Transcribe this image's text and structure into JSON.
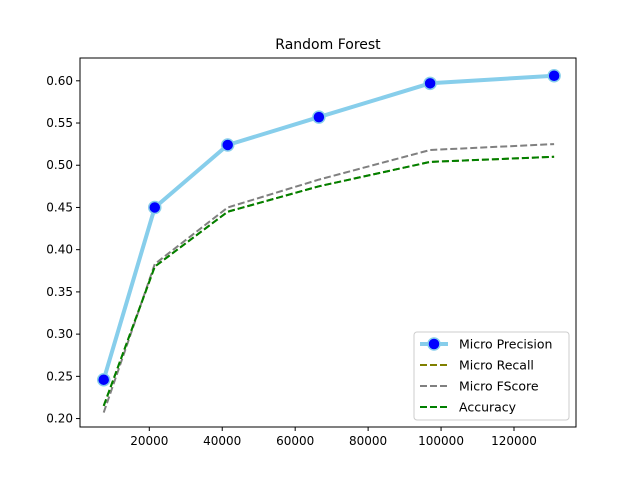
{
  "chart_data": {
    "type": "line",
    "title": "Random Forest",
    "xlabel": "",
    "ylabel": "",
    "xlim": [
      1000,
      137000
    ],
    "ylim": [
      0.19,
      0.627
    ],
    "xticks": [
      20000,
      40000,
      60000,
      80000,
      100000,
      120000
    ],
    "yticks": [
      0.2,
      0.25,
      0.3,
      0.35,
      0.4,
      0.45,
      0.5,
      0.55,
      0.6
    ],
    "x": [
      7500,
      21500,
      41500,
      66500,
      97000,
      131000
    ],
    "series": [
      {
        "name": "Micro Precision",
        "values": [
          0.246,
          0.45,
          0.524,
          0.557,
          0.597,
          0.606
        ],
        "color": "#87ceeb",
        "marker_color": "#0000ff",
        "style": "solid-marker"
      },
      {
        "name": "Micro Recall",
        "values": [
          0.215,
          0.38,
          0.445,
          0.475,
          0.504,
          0.51
        ],
        "color": "#808000",
        "style": "dashed"
      },
      {
        "name": "Micro FScore",
        "values": [
          0.207,
          0.383,
          0.45,
          0.483,
          0.518,
          0.525
        ],
        "color": "#808080",
        "style": "dashed"
      },
      {
        "name": "Accuracy",
        "values": [
          0.215,
          0.38,
          0.445,
          0.475,
          0.504,
          0.51
        ],
        "color": "#008000",
        "style": "dashed"
      }
    ],
    "legend": "lower-right",
    "grid": false
  }
}
